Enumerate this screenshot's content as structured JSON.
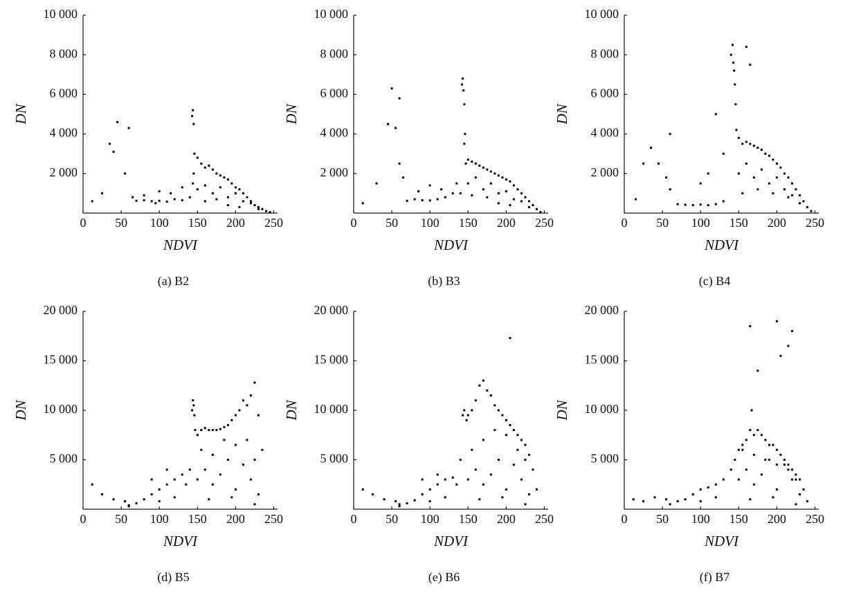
{
  "chart_data": [
    {
      "type": "scatter",
      "title": "(a) B2",
      "x_label": "NDVI",
      "y_label": "DN",
      "color": "#000000",
      "xlim": [
        0,
        255
      ],
      "ylim": [
        0,
        10000
      ],
      "xticks": [
        0,
        50,
        100,
        150,
        200,
        250
      ],
      "yticks": [
        {
          "value": 2000,
          "label": "2 000"
        },
        {
          "value": 4000,
          "label": "4 000"
        },
        {
          "value": 6000,
          "label": "6 000"
        },
        {
          "value": 8000,
          "label": "8 000"
        },
        {
          "value": 10000,
          "label": "10 000"
        }
      ],
      "x": [
        12,
        25,
        35,
        40,
        45,
        55,
        60,
        65,
        70,
        80,
        90,
        100,
        110,
        120,
        130,
        140,
        143,
        144,
        145,
        146,
        145,
        144,
        150,
        155,
        160,
        165,
        170,
        175,
        180,
        185,
        190,
        195,
        200,
        205,
        210,
        215,
        220,
        225,
        230,
        235,
        240,
        245,
        150,
        160,
        170,
        180,
        190,
        200,
        210,
        220,
        230,
        160,
        175,
        190,
        205,
        100,
        115,
        130,
        80,
        95
      ],
      "y": [
        600,
        1000,
        3500,
        3100,
        4600,
        2000,
        4300,
        800,
        620,
        650,
        600,
        620,
        580,
        700,
        650,
        800,
        4900,
        5200,
        4500,
        3000,
        2000,
        1500,
        2800,
        2500,
        2300,
        2400,
        2200,
        2000,
        1900,
        1800,
        1700,
        1500,
        1300,
        1200,
        1000,
        800,
        600,
        400,
        300,
        200,
        100,
        50,
        1200,
        1400,
        1000,
        1300,
        800,
        1000,
        600,
        500,
        200,
        600,
        700,
        400,
        300,
        1100,
        1000,
        1300,
        900,
        500
      ]
    },
    {
      "type": "scatter",
      "title": "(b) B3",
      "x_label": "NDVI",
      "y_label": "DN",
      "color": "#000000",
      "xlim": [
        0,
        255
      ],
      "ylim": [
        0,
        10000
      ],
      "xticks": [
        0,
        50,
        100,
        150,
        200,
        250
      ],
      "yticks": [
        {
          "value": 2000,
          "label": "2 000"
        },
        {
          "value": 4000,
          "label": "4 000"
        },
        {
          "value": 6000,
          "label": "6 000"
        },
        {
          "value": 8000,
          "label": "8 000"
        },
        {
          "value": 10000,
          "label": "10 000"
        }
      ],
      "x": [
        12,
        30,
        45,
        50,
        55,
        60,
        65,
        70,
        80,
        90,
        100,
        110,
        120,
        130,
        135,
        140,
        142,
        143,
        144,
        145,
        146,
        147,
        145,
        150,
        155,
        160,
        165,
        170,
        175,
        180,
        185,
        190,
        195,
        200,
        205,
        210,
        215,
        220,
        225,
        230,
        235,
        240,
        245,
        150,
        160,
        170,
        180,
        190,
        200,
        210,
        220,
        230,
        155,
        175,
        190,
        205,
        100,
        115,
        60,
        85
      ],
      "y": [
        500,
        1500,
        4500,
        6300,
        4300,
        5800,
        1800,
        620,
        700,
        650,
        640,
        700,
        800,
        1000,
        1500,
        1000,
        6500,
        6800,
        6200,
        5500,
        4000,
        2500,
        3500,
        2700,
        2600,
        2500,
        2400,
        2300,
        2200,
        2100,
        2000,
        1900,
        1800,
        1700,
        1600,
        1400,
        1200,
        1000,
        800,
        600,
        400,
        200,
        50,
        1500,
        1800,
        1200,
        1500,
        1000,
        1100,
        700,
        600,
        300,
        900,
        800,
        500,
        400,
        1400,
        1200,
        2500,
        1100
      ]
    },
    {
      "type": "scatter",
      "title": "(c) B4",
      "x_label": "NDVI",
      "y_label": "DN",
      "color": "#000000",
      "xlim": [
        0,
        255
      ],
      "ylim": [
        0,
        10000
      ],
      "xticks": [
        0,
        50,
        100,
        150,
        200,
        250
      ],
      "yticks": [
        {
          "value": 2000,
          "label": "2 000"
        },
        {
          "value": 4000,
          "label": "4 000"
        },
        {
          "value": 6000,
          "label": "6 000"
        },
        {
          "value": 8000,
          "label": "8 000"
        },
        {
          "value": 10000,
          "label": "10 000"
        }
      ],
      "x": [
        15,
        25,
        35,
        45,
        55,
        60,
        70,
        80,
        90,
        100,
        110,
        120,
        130,
        140,
        142,
        143,
        144,
        145,
        146,
        147,
        160,
        165,
        150,
        155,
        160,
        165,
        170,
        175,
        180,
        185,
        190,
        195,
        200,
        205,
        210,
        215,
        220,
        225,
        230,
        235,
        240,
        245,
        150,
        160,
        170,
        180,
        190,
        200,
        210,
        220,
        230,
        155,
        175,
        195,
        215,
        100,
        120,
        130,
        60,
        110
      ],
      "y": [
        700,
        2500,
        3300,
        2500,
        1800,
        4000,
        450,
        420,
        400,
        430,
        400,
        450,
        600,
        8000,
        8500,
        7600,
        7200,
        6500,
        5500,
        4200,
        8400,
        7500,
        3800,
        3500,
        3600,
        3500,
        3400,
        3300,
        3200,
        3000,
        2900,
        2700,
        2500,
        2300,
        2000,
        1800,
        1500,
        1200,
        900,
        600,
        300,
        100,
        2000,
        2500,
        1800,
        2200,
        1500,
        1800,
        1200,
        900,
        500,
        1000,
        1200,
        1000,
        800,
        1500,
        5000,
        3000,
        1200,
        2000
      ]
    },
    {
      "type": "scatter",
      "title": "(d) B5",
      "x_label": "NDVI",
      "y_label": "DN",
      "color": "#000000",
      "xlim": [
        0,
        255
      ],
      "ylim": [
        0,
        20000
      ],
      "xticks": [
        0,
        50,
        100,
        150,
        200,
        250
      ],
      "yticks": [
        {
          "value": 5000,
          "label": "5 000"
        },
        {
          "value": 10000,
          "label": "10 000"
        },
        {
          "value": 15000,
          "label": "15 000"
        },
        {
          "value": 20000,
          "label": "20 000"
        }
      ],
      "x": [
        12,
        25,
        40,
        55,
        60,
        70,
        80,
        90,
        100,
        110,
        120,
        130,
        140,
        143,
        144,
        145,
        146,
        147,
        150,
        155,
        160,
        165,
        170,
        175,
        180,
        185,
        190,
        195,
        200,
        205,
        210,
        215,
        220,
        225,
        230,
        235,
        150,
        160,
        170,
        180,
        190,
        200,
        210,
        220,
        230,
        155,
        170,
        185,
        200,
        215,
        225,
        165,
        195,
        225,
        100,
        120,
        135,
        60,
        90,
        110
      ],
      "y": [
        2500,
        1500,
        1000,
        800,
        400,
        600,
        1000,
        1500,
        2000,
        2500,
        3000,
        3500,
        4000,
        10000,
        11000,
        10500,
        9500,
        8000,
        7500,
        8000,
        8200,
        8000,
        8000,
        8000,
        8100,
        8300,
        8500,
        9000,
        9500,
        10000,
        11000,
        10500,
        11500,
        12800,
        9500,
        6000,
        3000,
        4000,
        2500,
        3500,
        5000,
        2000,
        4500,
        3000,
        1500,
        6000,
        5500,
        7000,
        6500,
        7000,
        5000,
        1000,
        1200,
        500,
        800,
        1200,
        2500,
        300,
        3000,
        4000
      ]
    },
    {
      "type": "scatter",
      "title": "(e) B6",
      "x_label": "NDVI",
      "y_label": "DN",
      "color": "#000000",
      "xlim": [
        0,
        255
      ],
      "ylim": [
        0,
        20000
      ],
      "xticks": [
        0,
        50,
        100,
        150,
        200,
        250
      ],
      "yticks": [
        {
          "value": 5000,
          "label": "5 000"
        },
        {
          "value": 10000,
          "label": "10 000"
        },
        {
          "value": 15000,
          "label": "15 000"
        },
        {
          "value": 20000,
          "label": "20 000"
        }
      ],
      "x": [
        12,
        25,
        40,
        55,
        60,
        70,
        80,
        90,
        100,
        110,
        120,
        130,
        140,
        143,
        145,
        148,
        150,
        155,
        160,
        165,
        170,
        175,
        180,
        185,
        190,
        195,
        200,
        205,
        210,
        215,
        220,
        225,
        230,
        235,
        240,
        205,
        150,
        160,
        170,
        180,
        190,
        200,
        210,
        220,
        230,
        155,
        170,
        185,
        200,
        215,
        225,
        165,
        195,
        225,
        100,
        120,
        135,
        60,
        90,
        110
      ],
      "y": [
        2000,
        1500,
        1000,
        800,
        500,
        600,
        900,
        1500,
        2000,
        2500,
        3000,
        3200,
        5000,
        9500,
        10000,
        9000,
        9500,
        10000,
        11000,
        12500,
        13000,
        12000,
        11500,
        10500,
        10000,
        9500,
        9000,
        8500,
        8000,
        7500,
        7000,
        6500,
        5500,
        4000,
        2000,
        17300,
        3000,
        4000,
        2500,
        3500,
        5000,
        2000,
        4500,
        3000,
        1500,
        6000,
        7000,
        8000,
        7500,
        6000,
        5000,
        1000,
        1200,
        500,
        800,
        1200,
        2500,
        300,
        3000,
        3500
      ]
    },
    {
      "type": "scatter",
      "title": "(f) B7",
      "x_label": "NDVI",
      "y_label": "DN",
      "color": "#000000",
      "xlim": [
        0,
        255
      ],
      "ylim": [
        0,
        20000
      ],
      "xticks": [
        0,
        50,
        100,
        150,
        200,
        250
      ],
      "yticks": [
        {
          "value": 5000,
          "label": "5 000"
        },
        {
          "value": 10000,
          "label": "10 000"
        },
        {
          "value": 15000,
          "label": "15 000"
        },
        {
          "value": 20000,
          "label": "20 000"
        }
      ],
      "x": [
        12,
        25,
        40,
        55,
        60,
        70,
        80,
        90,
        100,
        110,
        120,
        130,
        140,
        145,
        150,
        155,
        160,
        165,
        167,
        170,
        175,
        180,
        185,
        190,
        195,
        200,
        205,
        210,
        215,
        220,
        225,
        230,
        235,
        240,
        165,
        175,
        200,
        205,
        215,
        220,
        150,
        160,
        170,
        180,
        190,
        200,
        210,
        220,
        230,
        155,
        170,
        185,
        200,
        215,
        225,
        165,
        195,
        225,
        100,
        120
      ],
      "y": [
        1000,
        800,
        1200,
        1000,
        500,
        800,
        1000,
        1500,
        2000,
        2200,
        2500,
        3000,
        4000,
        5000,
        6000,
        6500,
        7000,
        8000,
        10000,
        7500,
        8000,
        7500,
        7000,
        6500,
        6500,
        6000,
        5500,
        5000,
        4500,
        4000,
        3500,
        3000,
        2000,
        800,
        18500,
        14000,
        19000,
        15500,
        16500,
        18000,
        3000,
        4000,
        2500,
        3500,
        5000,
        2000,
        4500,
        3000,
        1500,
        6000,
        5500,
        5000,
        4500,
        4000,
        3000,
        1000,
        1200,
        500,
        800,
        1200
      ]
    }
  ]
}
